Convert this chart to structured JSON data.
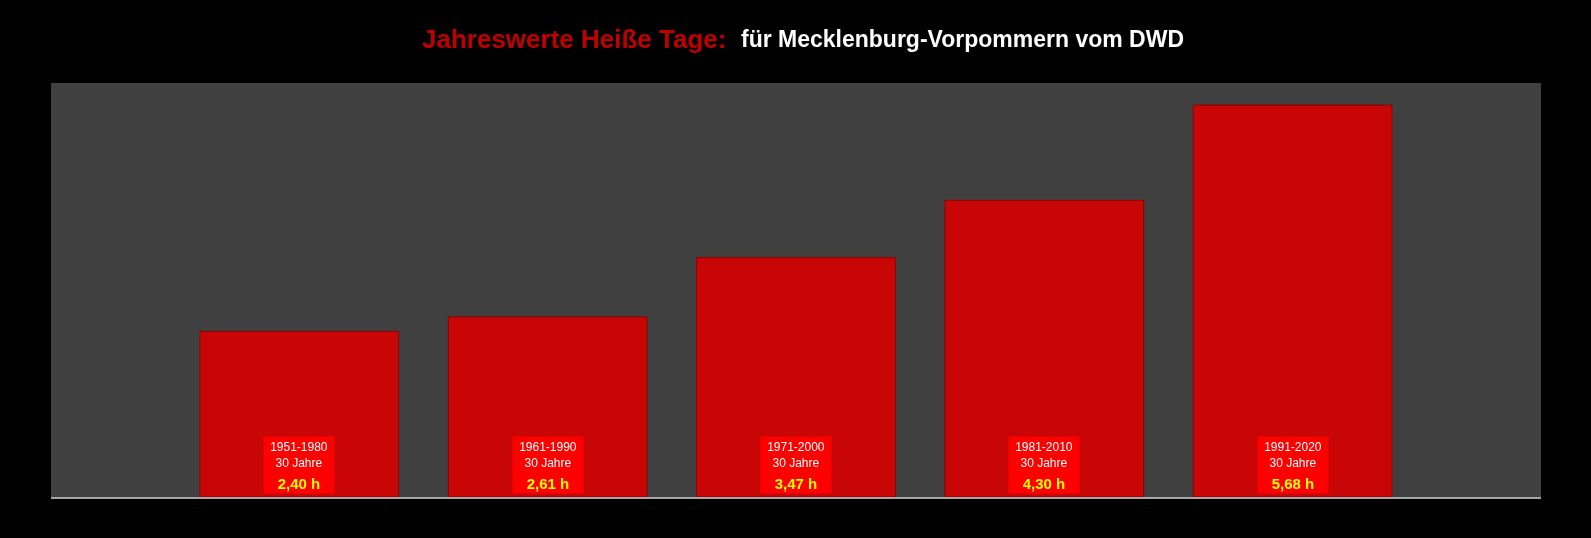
{
  "chart_data": {
    "type": "bar",
    "title": "Jahreswerte Heiße Tage:",
    "subtitle": "für Mecklenburg-Vorpommern vom DWD",
    "categories": [
      "1951-1980\n30 Jahre",
      "1961-1990\n30 Jahre",
      "1971-2000\n30 Jahre",
      "1981-2010\n30 Jahre",
      "1991-2020\n30 Jahre"
    ],
    "values": [
      2.4,
      2.61,
      3.47,
      4.3,
      5.68
    ],
    "value_labels": [
      "2,40 h",
      "2,61 h",
      "3,47 h",
      "4,30 h",
      "5,68 h"
    ],
    "color": "#c90606",
    "ylim": [
      0,
      6
    ],
    "tick_labels": "x"
  }
}
